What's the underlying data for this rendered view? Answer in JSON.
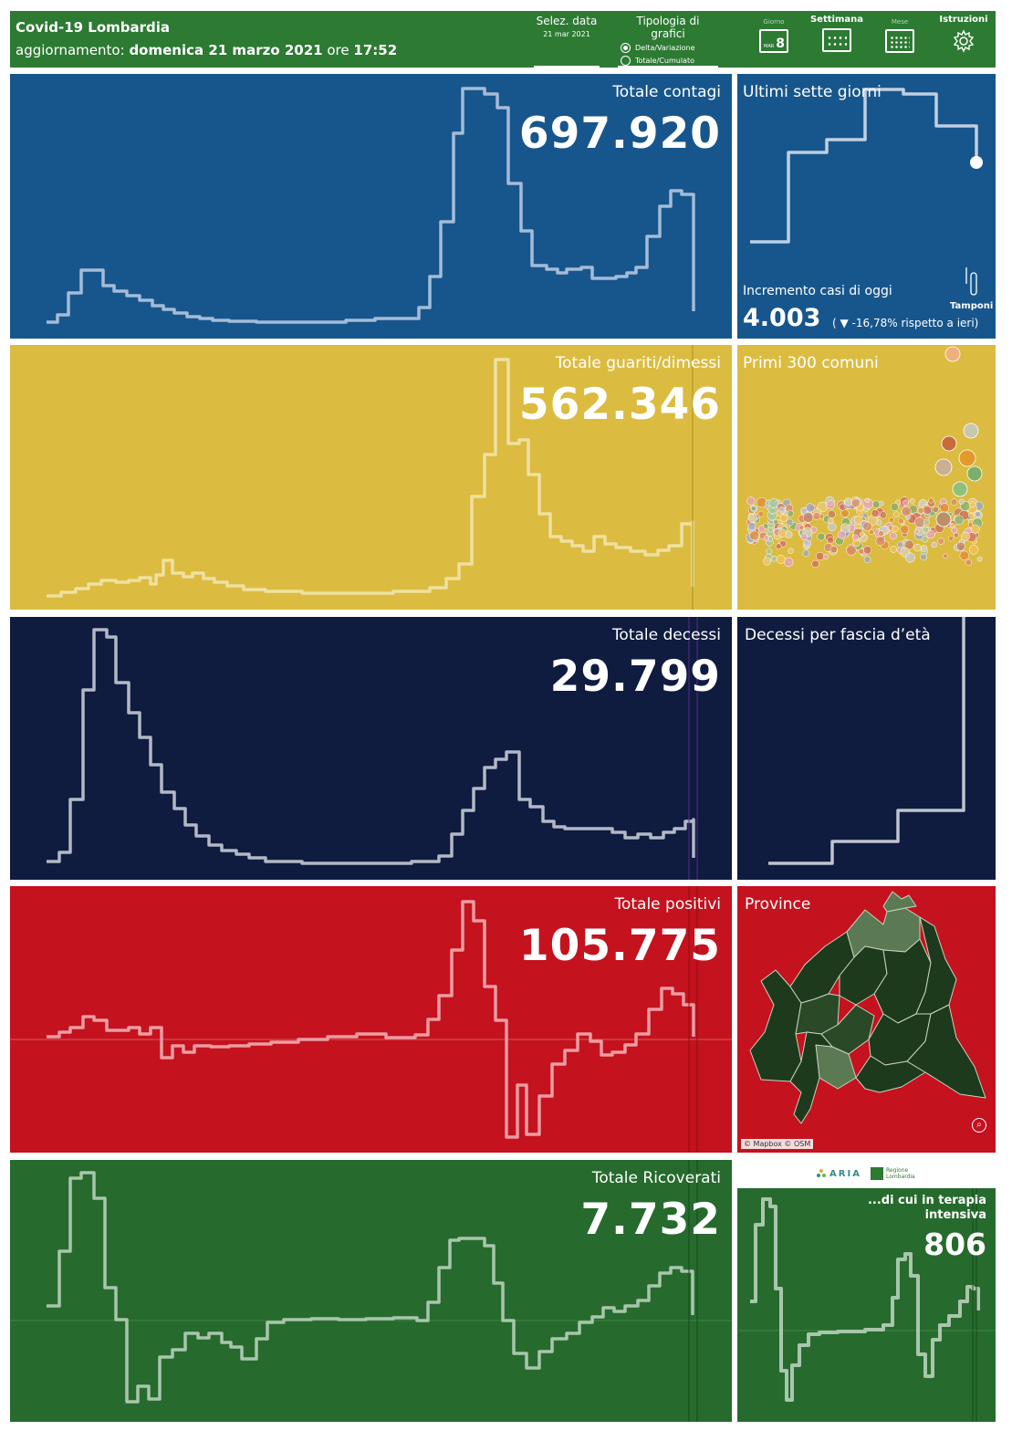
{
  "header": {
    "title": "Covid-19 Lombardia",
    "update_prefix": "aggiornamento:",
    "update_date": "domenica 21 marzo 2021",
    "update_ore": "ore",
    "update_time": "17:52",
    "select_date_label": "Selez. data",
    "select_date_value": "21 mar 2021",
    "chart_type_label": "Tipologia di grafici",
    "chart_type_options": [
      "Delta/Variazione",
      "Totale/Cumulato"
    ],
    "chart_type_selected": "Delta/Variazione",
    "btn_day": "Giorno",
    "btn_day_num": "8",
    "btn_week": "Settimana",
    "btn_month": "Mese",
    "btn_instructions": "Istruzioni"
  },
  "panels": {
    "contagi": {
      "title": "Totale contagi",
      "value": "697.920",
      "color": "#17568c"
    },
    "guariti": {
      "title": "Totale guariti/dimessi",
      "value": "562.346",
      "color": "#dbbc41"
    },
    "decessi": {
      "title": "Totale decessi",
      "value": "29.799",
      "color": "#0f1c40"
    },
    "positivi": {
      "title": "Totale positivi",
      "value": "105.775",
      "color": "#c4121e"
    },
    "ricoverati": {
      "title": "Totale Ricoverati",
      "value": "7.732",
      "color": "#266b2d"
    }
  },
  "side": {
    "settimana_title": "Ultimi sette giorni",
    "incremento_label": "Incremento casi di oggi",
    "incremento_value": "4.003",
    "incremento_delta": "( ▼ -16,78% rispetto a  ieri)",
    "tamponi_label": "Tamponi",
    "comuni_title": "Primi 300 comuni",
    "fascia_title": "Decessi per fascia d’età",
    "province_title": "Province",
    "map_attribution": "© Mapbox © OSM",
    "logo_aria": "ARIA",
    "logo_regione": "Regione Lombardia",
    "intensiva_label": "...di cui in terapia intensiva",
    "intensiva_value": "806"
  }
}
